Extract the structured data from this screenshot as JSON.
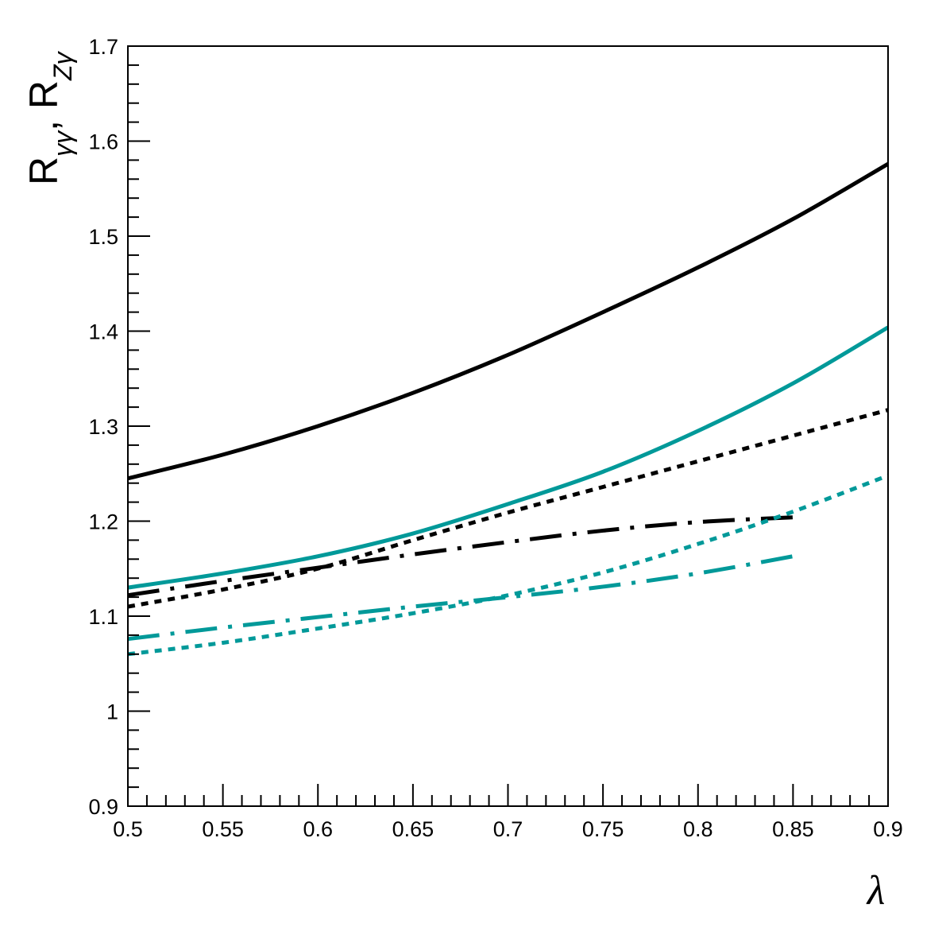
{
  "chart_data": {
    "type": "line",
    "title": "",
    "xlabel": "λ",
    "ylabel_parts": {
      "r1": "R",
      "s1": "γγ",
      "sep": ", ",
      "r2": "R",
      "s2": "Zγ"
    },
    "xlim": [
      0.5,
      0.9
    ],
    "ylim": [
      0.9,
      1.7
    ],
    "x_ticks": [
      "0.5",
      "0.55",
      "0.6",
      "0.65",
      "0.7",
      "0.75",
      "0.8",
      "0.85",
      "0.9"
    ],
    "y_ticks": [
      "0.9",
      "1",
      "1.1",
      "1.2",
      "1.3",
      "1.4",
      "1.5",
      "1.6",
      "1.7"
    ],
    "grid": false,
    "legend": "none",
    "series": [
      {
        "color": "#000000",
        "style": "solid",
        "x": [
          0.5,
          0.55,
          0.6,
          0.65,
          0.7,
          0.75,
          0.8,
          0.85,
          0.9
        ],
        "y": [
          1.245,
          1.27,
          1.3,
          1.335,
          1.375,
          1.42,
          1.467,
          1.518,
          1.576
        ]
      },
      {
        "color": "#009999",
        "style": "solid",
        "x": [
          0.5,
          0.55,
          0.6,
          0.65,
          0.7,
          0.75,
          0.8,
          0.85,
          0.9
        ],
        "y": [
          1.13,
          1.145,
          1.163,
          1.187,
          1.218,
          1.252,
          1.295,
          1.345,
          1.404
        ]
      },
      {
        "color": "#000000",
        "style": "dotted",
        "x": [
          0.5,
          0.55,
          0.6,
          0.65,
          0.7,
          0.75,
          0.8,
          0.85,
          0.9
        ],
        "y": [
          1.11,
          1.128,
          1.15,
          1.18,
          1.209,
          1.236,
          1.263,
          1.29,
          1.317
        ]
      },
      {
        "color": "#000000",
        "style": "dashdot",
        "x": [
          0.5,
          0.55,
          0.6,
          0.65,
          0.7,
          0.75,
          0.8,
          0.85
        ],
        "y": [
          1.122,
          1.137,
          1.151,
          1.165,
          1.178,
          1.19,
          1.199,
          1.204
        ]
      },
      {
        "color": "#009999",
        "style": "dotted",
        "x": [
          0.5,
          0.55,
          0.6,
          0.65,
          0.7,
          0.75,
          0.8,
          0.85,
          0.9
        ],
        "y": [
          1.06,
          1.072,
          1.087,
          1.103,
          1.122,
          1.146,
          1.176,
          1.21,
          1.248
        ]
      },
      {
        "color": "#009999",
        "style": "dashdot",
        "x": [
          0.5,
          0.55,
          0.6,
          0.65,
          0.7,
          0.75,
          0.8,
          0.85
        ],
        "y": [
          1.076,
          1.088,
          1.099,
          1.11,
          1.12,
          1.131,
          1.145,
          1.163
        ]
      }
    ]
  }
}
